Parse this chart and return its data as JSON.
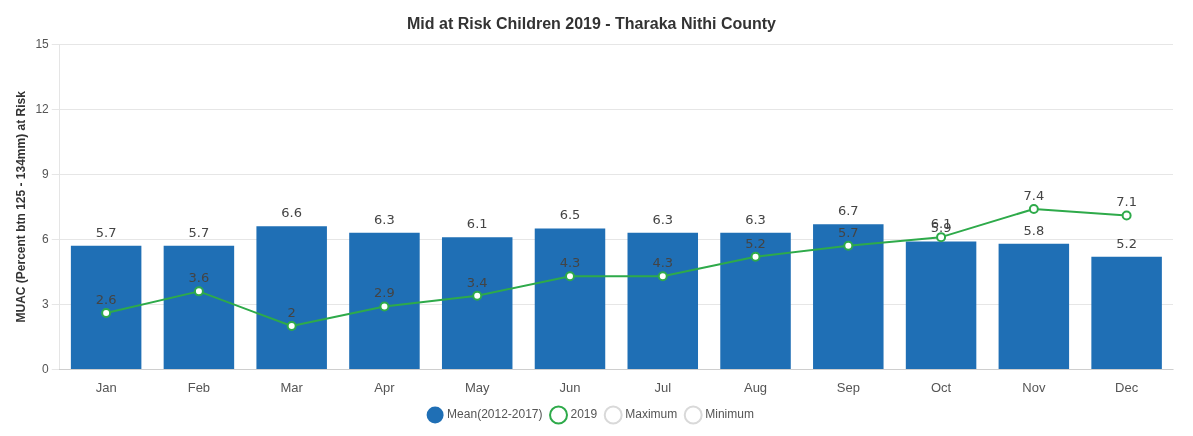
{
  "chart_data": {
    "type": "bar",
    "title": "Mid at Risk Children 2019 - Tharaka Nithi County",
    "ylabel": "MUAC (Percent btn 125 - 134mm) at Risk",
    "categories": [
      "Jan",
      "Feb",
      "Mar",
      "Apr",
      "May",
      "Jun",
      "Jul",
      "Aug",
      "Sep",
      "Oct",
      "Nov",
      "Dec"
    ],
    "series": [
      {
        "name": "Mean(2012-2017)",
        "color": "#1f6fb5",
        "values": [
          5.7,
          5.7,
          6.6,
          6.3,
          6.1,
          6.5,
          6.3,
          6.3,
          6.7,
          5.9,
          5.8,
          5.2
        ]
      },
      {
        "name": "2019",
        "type": "line",
        "color": "#2eaa4a",
        "values": [
          2.6,
          3.6,
          2,
          2.9,
          3.4,
          4.3,
          4.3,
          5.2,
          5.7,
          6.1,
          7.4,
          7.1
        ]
      },
      {
        "name": "Maximum",
        "type": "line",
        "color": "#d9d9d9",
        "values": [
          null,
          null,
          null,
          null,
          null,
          null,
          null,
          null,
          null,
          null,
          null,
          null
        ]
      },
      {
        "name": "Minimum",
        "type": "line",
        "color": "#d9d9d9",
        "values": [
          null,
          null,
          null,
          null,
          null,
          null,
          null,
          null,
          null,
          null,
          null,
          null
        ]
      }
    ],
    "ylim": [
      0,
      15
    ],
    "yticks": [
      0,
      3,
      6,
      9,
      12,
      15
    ],
    "grid": "y",
    "legend": "bottom",
    "marker": "circle",
    "line_style": "solid",
    "data_labels": true
  }
}
